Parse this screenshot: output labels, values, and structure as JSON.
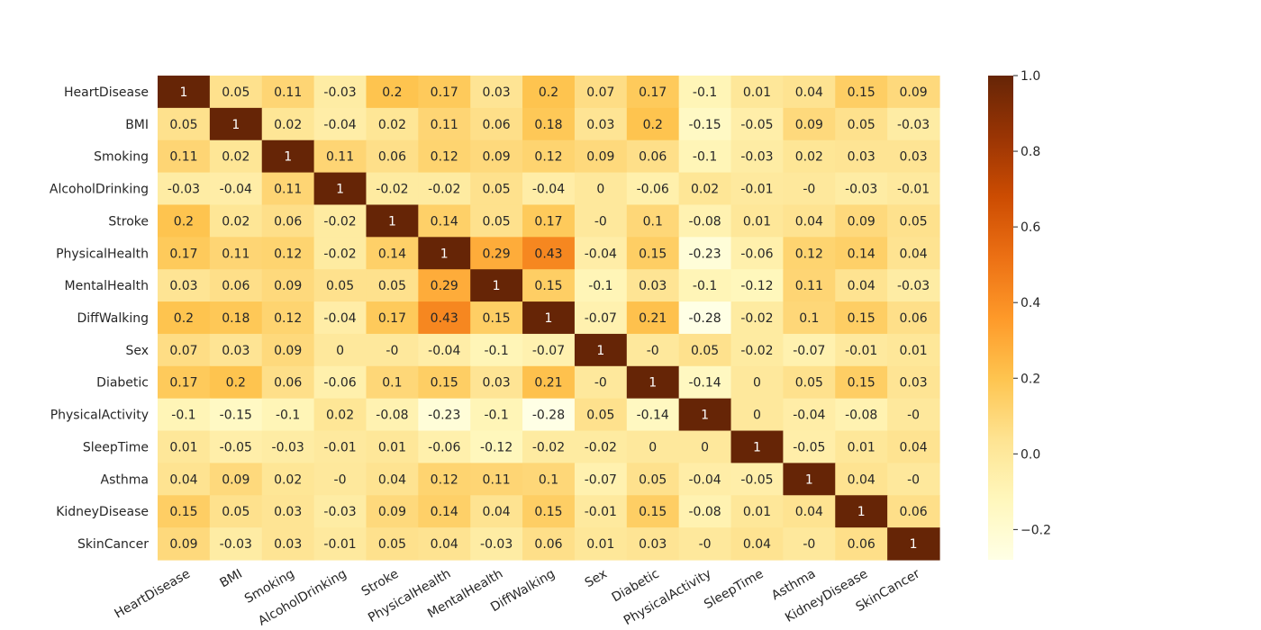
{
  "chart_data": {
    "type": "heatmap",
    "title": "",
    "xlabel": "",
    "ylabel": "",
    "rows": [
      "HeartDisease",
      "BMI",
      "Smoking",
      "AlcoholDrinking",
      "Stroke",
      "PhysicalHealth",
      "MentalHealth",
      "DiffWalking",
      "Sex",
      "Diabetic",
      "PhysicalActivity",
      "SleepTime",
      "Asthma",
      "KidneyDisease",
      "SkinCancer"
    ],
    "columns": [
      "HeartDisease",
      "BMI",
      "Smoking",
      "AlcoholDrinking",
      "Stroke",
      "PhysicalHealth",
      "MentalHealth",
      "DiffWalking",
      "Sex",
      "Diabetic",
      "PhysicalActivity",
      "SleepTime",
      "Asthma",
      "KidneyDisease",
      "SkinCancer"
    ],
    "values": [
      [
        1,
        0.05,
        0.11,
        -0.03,
        0.2,
        0.17,
        0.03,
        0.2,
        0.07,
        0.17,
        -0.1,
        0.01,
        0.04,
        0.15,
        0.09
      ],
      [
        0.05,
        1,
        0.02,
        -0.04,
        0.02,
        0.11,
        0.06,
        0.18,
        0.03,
        0.2,
        -0.15,
        -0.05,
        0.09,
        0.05,
        -0.03
      ],
      [
        0.11,
        0.02,
        1,
        0.11,
        0.06,
        0.12,
        0.09,
        0.12,
        0.09,
        0.06,
        -0.1,
        -0.03,
        0.02,
        0.03,
        0.03
      ],
      [
        -0.03,
        -0.04,
        0.11,
        1,
        -0.02,
        -0.02,
        0.05,
        -0.04,
        0,
        -0.06,
        0.02,
        -0.01,
        -0.0,
        -0.03,
        -0.01
      ],
      [
        0.2,
        0.02,
        0.06,
        -0.02,
        1,
        0.14,
        0.05,
        0.17,
        -0.0,
        0.1,
        -0.08,
        0.01,
        0.04,
        0.09,
        0.05
      ],
      [
        0.17,
        0.11,
        0.12,
        -0.02,
        0.14,
        1,
        0.29,
        0.43,
        -0.04,
        0.15,
        -0.23,
        -0.06,
        0.12,
        0.14,
        0.04
      ],
      [
        0.03,
        0.06,
        0.09,
        0.05,
        0.05,
        0.29,
        1,
        0.15,
        -0.1,
        0.03,
        -0.1,
        -0.12,
        0.11,
        0.04,
        -0.03
      ],
      [
        0.2,
        0.18,
        0.12,
        -0.04,
        0.17,
        0.43,
        0.15,
        1,
        -0.07,
        0.21,
        -0.28,
        -0.02,
        0.1,
        0.15,
        0.06
      ],
      [
        0.07,
        0.03,
        0.09,
        0,
        -0.0,
        -0.04,
        -0.1,
        -0.07,
        1,
        -0.0,
        0.05,
        -0.02,
        -0.07,
        -0.01,
        0.01
      ],
      [
        0.17,
        0.2,
        0.06,
        -0.06,
        0.1,
        0.15,
        0.03,
        0.21,
        -0.0,
        1,
        -0.14,
        0,
        0.05,
        0.15,
        0.03
      ],
      [
        -0.1,
        -0.15,
        -0.1,
        0.02,
        -0.08,
        -0.23,
        -0.1,
        -0.28,
        0.05,
        -0.14,
        1,
        0,
        -0.04,
        -0.08,
        -0.0
      ],
      [
        0.01,
        -0.05,
        -0.03,
        -0.01,
        0.01,
        -0.06,
        -0.12,
        -0.02,
        -0.02,
        0,
        0,
        1,
        -0.05,
        0.01,
        0.04
      ],
      [
        0.04,
        0.09,
        0.02,
        -0.0,
        0.04,
        0.12,
        0.11,
        0.1,
        -0.07,
        0.05,
        -0.04,
        -0.05,
        1,
        0.04,
        -0.0
      ],
      [
        0.15,
        0.05,
        0.03,
        -0.03,
        0.09,
        0.14,
        0.04,
        0.15,
        -0.01,
        0.15,
        -0.08,
        0.01,
        0.04,
        1,
        0.06
      ],
      [
        0.09,
        -0.03,
        0.03,
        -0.01,
        0.05,
        0.04,
        -0.03,
        0.06,
        0.01,
        0.03,
        -0.0,
        0.04,
        -0.0,
        0.06,
        1
      ]
    ],
    "cell_labels": [
      [
        "1",
        "0.05",
        "0.11",
        "-0.03",
        "0.2",
        "0.17",
        "0.03",
        "0.2",
        "0.07",
        "0.17",
        "-0.1",
        "0.01",
        "0.04",
        "0.15",
        "0.09"
      ],
      [
        "0.05",
        "1",
        "0.02",
        "-0.04",
        "0.02",
        "0.11",
        "0.06",
        "0.18",
        "0.03",
        "0.2",
        "-0.15",
        "-0.05",
        "0.09",
        "0.05",
        "-0.03"
      ],
      [
        "0.11",
        "0.02",
        "1",
        "0.11",
        "0.06",
        "0.12",
        "0.09",
        "0.12",
        "0.09",
        "0.06",
        "-0.1",
        "-0.03",
        "0.02",
        "0.03",
        "0.03"
      ],
      [
        "-0.03",
        "-0.04",
        "0.11",
        "1",
        "-0.02",
        "-0.02",
        "0.05",
        "-0.04",
        "0",
        "-0.06",
        "0.02",
        "-0.01",
        "-0",
        "-0.03",
        "-0.01"
      ],
      [
        "0.2",
        "0.02",
        "0.06",
        "-0.02",
        "1",
        "0.14",
        "0.05",
        "0.17",
        "-0",
        "0.1",
        "-0.08",
        "0.01",
        "0.04",
        "0.09",
        "0.05"
      ],
      [
        "0.17",
        "0.11",
        "0.12",
        "-0.02",
        "0.14",
        "1",
        "0.29",
        "0.43",
        "-0.04",
        "0.15",
        "-0.23",
        "-0.06",
        "0.12",
        "0.14",
        "0.04"
      ],
      [
        "0.03",
        "0.06",
        "0.09",
        "0.05",
        "0.05",
        "0.29",
        "1",
        "0.15",
        "-0.1",
        "0.03",
        "-0.1",
        "-0.12",
        "0.11",
        "0.04",
        "-0.03"
      ],
      [
        "0.2",
        "0.18",
        "0.12",
        "-0.04",
        "0.17",
        "0.43",
        "0.15",
        "1",
        "-0.07",
        "0.21",
        "-0.28",
        "-0.02",
        "0.1",
        "0.15",
        "0.06"
      ],
      [
        "0.07",
        "0.03",
        "0.09",
        "0",
        "-0",
        "-0.04",
        "-0.1",
        "-0.07",
        "1",
        "-0",
        "0.05",
        "-0.02",
        "-0.07",
        "-0.01",
        "0.01"
      ],
      [
        "0.17",
        "0.2",
        "0.06",
        "-0.06",
        "0.1",
        "0.15",
        "0.03",
        "0.21",
        "-0",
        "1",
        "-0.14",
        "0",
        "0.05",
        "0.15",
        "0.03"
      ],
      [
        "-0.1",
        "-0.15",
        "-0.1",
        "0.02",
        "-0.08",
        "-0.23",
        "-0.1",
        "-0.28",
        "0.05",
        "-0.14",
        "1",
        "0",
        "-0.04",
        "-0.08",
        "-0"
      ],
      [
        "0.01",
        "-0.05",
        "-0.03",
        "-0.01",
        "0.01",
        "-0.06",
        "-0.12",
        "-0.02",
        "-0.02",
        "0",
        "0",
        "1",
        "-0.05",
        "0.01",
        "0.04"
      ],
      [
        "0.04",
        "0.09",
        "0.02",
        "-0",
        "0.04",
        "0.12",
        "0.11",
        "0.1",
        "-0.07",
        "0.05",
        "-0.04",
        "-0.05",
        "1",
        "0.04",
        "-0"
      ],
      [
        "0.15",
        "0.05",
        "0.03",
        "-0.03",
        "0.09",
        "0.14",
        "0.04",
        "0.15",
        "-0.01",
        "0.15",
        "-0.08",
        "0.01",
        "0.04",
        "1",
        "0.06"
      ],
      [
        "0.09",
        "-0.03",
        "0.03",
        "-0.01",
        "0.05",
        "0.04",
        "-0.03",
        "0.06",
        "0.01",
        "0.03",
        "-0",
        "0.04",
        "-0",
        "0.06",
        "1"
      ]
    ],
    "colormap": "YlOrBr",
    "colormap_stops": [
      "#ffffe5",
      "#fff7bc",
      "#fee391",
      "#fec44f",
      "#fe9929",
      "#ec7014",
      "#cc4c02",
      "#993404",
      "#662506"
    ],
    "vmin": -0.28,
    "vmax": 1.0,
    "colorbar": {
      "ticks": [
        1.0,
        0.8,
        0.6,
        0.4,
        0.2,
        0.0,
        -0.2
      ],
      "tick_labels": [
        "1.0",
        "0.8",
        "0.6",
        "0.4",
        "0.2",
        "0.0",
        "−0.2"
      ]
    },
    "grid": false,
    "legend": "colorbar-right"
  }
}
